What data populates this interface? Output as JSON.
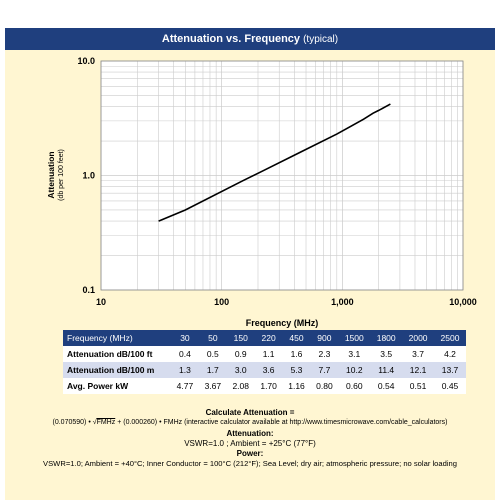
{
  "chart_data": {
    "type": "line",
    "title": "Attenuation vs. Frequency",
    "subtitle": "(typical)",
    "xlabel": "Frequency (MHz)",
    "ylabel": "Attenuation",
    "ylabel_sub": "(db per 100 feet)",
    "xscale": "log",
    "yscale": "log",
    "xlim": [
      10,
      10000
    ],
    "ylim": [
      0.1,
      10
    ],
    "grid": true,
    "x_ticks": [
      "10",
      "100",
      "1,000",
      "10,000"
    ],
    "y_ticks": [
      "0.1",
      "1.0",
      "10.0"
    ],
    "series": [
      {
        "x": [
          30,
          50,
          150,
          220,
          450,
          900,
          1500,
          1800,
          2000,
          2500
        ],
        "values": [
          0.4,
          0.5,
          0.9,
          1.1,
          1.6,
          2.3,
          3.1,
          3.5,
          3.7,
          4.2
        ]
      }
    ]
  },
  "table": {
    "header_label": "Frequency (MHz)",
    "frequencies": [
      "30",
      "50",
      "150",
      "220",
      "450",
      "900",
      "1500",
      "1800",
      "2000",
      "2500"
    ],
    "rows": [
      {
        "label": "Attenuation dB/100 ft",
        "values": [
          "0.4",
          "0.5",
          "0.9",
          "1.1",
          "1.6",
          "2.3",
          "3.1",
          "3.5",
          "3.7",
          "4.2"
        ]
      },
      {
        "label": "Attenuation dB/100 m",
        "values": [
          "1.3",
          "1.7",
          "3.0",
          "3.6",
          "5.3",
          "7.7",
          "10.2",
          "11.4",
          "12.1",
          "13.7"
        ]
      },
      {
        "label": "Avg. Power kW",
        "values": [
          "4.77",
          "3.67",
          "2.08",
          "1.70",
          "1.16",
          "0.80",
          "0.60",
          "0.54",
          "0.51",
          "0.45"
        ]
      }
    ]
  },
  "notes": {
    "calc_heading": "Calculate Attenuation =",
    "calc_coef1": "(0.070590)",
    "calc_dot1": "•",
    "calc_sqrt_var": "FMHz",
    "calc_plus": "+ (0.000260)",
    "calc_dot2": "•",
    "calc_tail": "FMHz (interactive calculator available at http://www.timesmicrowave.com/cable_calculators)",
    "atten_heading": "Attenuation:",
    "atten_line": "VSWR=1.0 ; Ambient = +25°C (77°F)",
    "power_heading": "Power:",
    "power_line": "VSWR=1.0; Ambient = +40°C; Inner Conductor = 100°C (212°F); Sea Level; dry air; atmospheric pressure; no solar loading"
  },
  "colors": {
    "header_bg": "#1f3f7e",
    "panel_bg": "#fff6d2",
    "row_alt": "#d6dcee",
    "grid": "#cccccc",
    "line": "#000000"
  }
}
